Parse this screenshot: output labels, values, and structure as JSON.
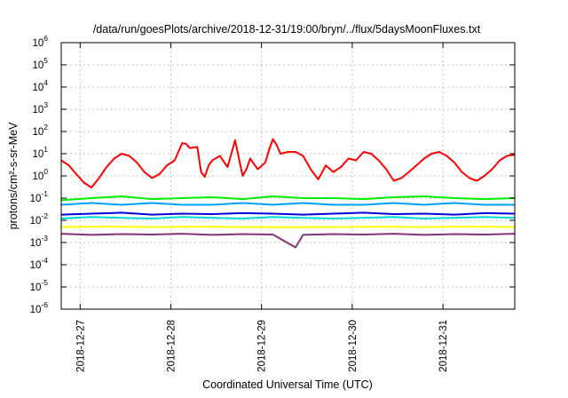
{
  "chart_data": {
    "type": "line",
    "title": "/data/run/goesPlots/archive/2018-12-31/19:00/bryn/../flux/5daysMoonFluxes.txt",
    "xlabel": "Coordinated Universal Time (UTC)",
    "ylabel": "protons/cm²-s-sr-MeV",
    "yscale": "log",
    "ylim": [
      1e-06,
      1000000.0
    ],
    "yticks": [
      {
        "value": 1e-06,
        "base": "10",
        "exp": "-6"
      },
      {
        "value": 1e-05,
        "base": "10",
        "exp": "-5"
      },
      {
        "value": 0.0001,
        "base": "10",
        "exp": "-4"
      },
      {
        "value": 0.001,
        "base": "10",
        "exp": "-3"
      },
      {
        "value": 0.01,
        "base": "10",
        "exp": "-2"
      },
      {
        "value": 0.1,
        "base": "10",
        "exp": "-1"
      },
      {
        "value": 1,
        "base": "10",
        "exp": "0"
      },
      {
        "value": 10,
        "base": "10",
        "exp": "1"
      },
      {
        "value": 100,
        "base": "10",
        "exp": "2"
      },
      {
        "value": 1000,
        "base": "10",
        "exp": "3"
      },
      {
        "value": 10000,
        "base": "10",
        "exp": "4"
      },
      {
        "value": 100000,
        "base": "10",
        "exp": "5"
      },
      {
        "value": 1000000,
        "base": "10",
        "exp": "6"
      }
    ],
    "xlim": [
      "2018-12-26T19:00",
      "2018-12-31T19:00"
    ],
    "xticks": [
      {
        "value": "2018-12-27T00:00",
        "label": "2018-12-27"
      },
      {
        "value": "2018-12-28T00:00",
        "label": "2018-12-28"
      },
      {
        "value": "2018-12-29T00:00",
        "label": "2018-12-29"
      },
      {
        "value": "2018-12-30T00:00",
        "label": "2018-12-30"
      },
      {
        "value": "2018-12-31T00:00",
        "label": "2018-12-31"
      }
    ],
    "grid": true,
    "legend": false,
    "series": [
      {
        "color": "#ff0000",
        "x": [
          "2018-12-26T19:00",
          "2018-12-26T21:00",
          "2018-12-26T23:00",
          "2018-12-27T01:00",
          "2018-12-27T03:00",
          "2018-12-27T05:00",
          "2018-12-27T07:00",
          "2018-12-27T09:00",
          "2018-12-27T11:00",
          "2018-12-27T13:00",
          "2018-12-27T15:00",
          "2018-12-27T17:00",
          "2018-12-27T19:00",
          "2018-12-27T21:00",
          "2018-12-27T23:00",
          "2018-12-28T01:00",
          "2018-12-28T02:00",
          "2018-12-28T03:00",
          "2018-12-28T04:00",
          "2018-12-28T05:00",
          "2018-12-28T07:00",
          "2018-12-28T08:00",
          "2018-12-28T09:00",
          "2018-12-28T10:00",
          "2018-12-28T11:00",
          "2018-12-28T13:00",
          "2018-12-28T15:00",
          "2018-12-28T17:00",
          "2018-12-28T19:00",
          "2018-12-28T20:00",
          "2018-12-28T21:00",
          "2018-12-28T23:00",
          "2018-12-29T01:00",
          "2018-12-29T02:00",
          "2018-12-29T03:00",
          "2018-12-29T04:00",
          "2018-12-29T05:00",
          "2018-12-29T07:00",
          "2018-12-29T09:00",
          "2018-12-29T11:00",
          "2018-12-29T13:00",
          "2018-12-29T15:00",
          "2018-12-29T17:00",
          "2018-12-29T19:00",
          "2018-12-29T21:00",
          "2018-12-29T23:00",
          "2018-12-30T01:00",
          "2018-12-30T03:00",
          "2018-12-30T05:00",
          "2018-12-30T07:00",
          "2018-12-30T09:00",
          "2018-12-30T11:00",
          "2018-12-30T13:00",
          "2018-12-30T15:00",
          "2018-12-30T17:00",
          "2018-12-30T19:00",
          "2018-12-30T21:00",
          "2018-12-30T23:00",
          "2018-12-31T01:00",
          "2018-12-31T03:00",
          "2018-12-31T05:00",
          "2018-12-31T07:00",
          "2018-12-31T09:00",
          "2018-12-31T11:00",
          "2018-12-31T13:00",
          "2018-12-31T15:00",
          "2018-12-31T17:00",
          "2018-12-31T19:00"
        ],
        "y": [
          5,
          3,
          1.2,
          0.5,
          0.3,
          0.8,
          2.5,
          6,
          10,
          8,
          4,
          1.5,
          0.8,
          1.2,
          3,
          5,
          12,
          30,
          28,
          18,
          20,
          1.5,
          0.9,
          3,
          5,
          8,
          2.5,
          40,
          1,
          2,
          6,
          2,
          4,
          15,
          45,
          25,
          10,
          12,
          12,
          8,
          2,
          0.7,
          3,
          1.5,
          2.5,
          6,
          5,
          12,
          10,
          5,
          2,
          0.6,
          0.8,
          1.5,
          3,
          6,
          10,
          12,
          8,
          4,
          1.5,
          0.8,
          0.6,
          1,
          2,
          5,
          8,
          9
        ]
      },
      {
        "color": "#00ee00",
        "x": [
          "2018-12-26T19:00",
          "2018-12-27T03:00",
          "2018-12-27T11:00",
          "2018-12-27T19:00",
          "2018-12-28T03:00",
          "2018-12-28T11:00",
          "2018-12-28T19:00",
          "2018-12-29T03:00",
          "2018-12-29T11:00",
          "2018-12-29T19:00",
          "2018-12-30T03:00",
          "2018-12-30T11:00",
          "2018-12-30T19:00",
          "2018-12-31T03:00",
          "2018-12-31T11:00",
          "2018-12-31T19:00"
        ],
        "y": [
          0.08,
          0.1,
          0.12,
          0.09,
          0.1,
          0.11,
          0.09,
          0.12,
          0.1,
          0.1,
          0.09,
          0.11,
          0.12,
          0.1,
          0.09,
          0.1
        ]
      },
      {
        "color": "#00a0ff",
        "x": [
          "2018-12-26T19:00",
          "2018-12-27T03:00",
          "2018-12-27T11:00",
          "2018-12-27T19:00",
          "2018-12-28T03:00",
          "2018-12-28T11:00",
          "2018-12-28T19:00",
          "2018-12-29T03:00",
          "2018-12-29T11:00",
          "2018-12-29T19:00",
          "2018-12-30T03:00",
          "2018-12-30T11:00",
          "2018-12-30T19:00",
          "2018-12-31T03:00",
          "2018-12-31T11:00",
          "2018-12-31T19:00"
        ],
        "y": [
          0.05,
          0.06,
          0.05,
          0.06,
          0.05,
          0.05,
          0.06,
          0.05,
          0.06,
          0.05,
          0.05,
          0.06,
          0.05,
          0.06,
          0.05,
          0.05
        ]
      },
      {
        "color": "#00d8d8",
        "x": [
          "2018-12-26T19:00",
          "2018-12-27T03:00",
          "2018-12-27T11:00",
          "2018-12-27T19:00",
          "2018-12-28T03:00",
          "2018-12-28T11:00",
          "2018-12-28T19:00",
          "2018-12-29T03:00",
          "2018-12-29T11:00",
          "2018-12-29T19:00",
          "2018-12-30T03:00",
          "2018-12-30T11:00",
          "2018-12-30T19:00",
          "2018-12-31T03:00",
          "2018-12-31T11:00",
          "2018-12-31T19:00"
        ],
        "y": [
          0.012,
          0.014,
          0.013,
          0.012,
          0.014,
          0.013,
          0.012,
          0.014,
          0.013,
          0.012,
          0.013,
          0.014,
          0.012,
          0.013,
          0.014,
          0.013
        ]
      },
      {
        "color": "#0000dd",
        "x": [
          "2018-12-26T19:00",
          "2018-12-27T03:00",
          "2018-12-27T11:00",
          "2018-12-27T19:00",
          "2018-12-28T03:00",
          "2018-12-28T11:00",
          "2018-12-28T19:00",
          "2018-12-29T03:00",
          "2018-12-29T11:00",
          "2018-12-29T19:00",
          "2018-12-30T03:00",
          "2018-12-30T11:00",
          "2018-12-30T19:00",
          "2018-12-31T03:00",
          "2018-12-31T11:00",
          "2018-12-31T19:00"
        ],
        "y": [
          0.018,
          0.02,
          0.022,
          0.018,
          0.02,
          0.019,
          0.021,
          0.02,
          0.018,
          0.02,
          0.022,
          0.019,
          0.02,
          0.018,
          0.021,
          0.02
        ]
      },
      {
        "color": "#ffff00",
        "x": [
          "2018-12-26T19:00",
          "2018-12-27T07:00",
          "2018-12-27T19:00",
          "2018-12-28T07:00",
          "2018-12-28T19:00",
          "2018-12-29T07:00",
          "2018-12-29T19:00",
          "2018-12-30T07:00",
          "2018-12-30T19:00",
          "2018-12-31T07:00",
          "2018-12-31T19:00"
        ],
        "y": [
          0.005,
          0.0052,
          0.005,
          0.0051,
          0.005,
          0.0049,
          0.005,
          0.0051,
          0.005,
          0.0052,
          0.005
        ]
      },
      {
        "color": "#883377",
        "x": [
          "2018-12-26T19:00",
          "2018-12-27T03:00",
          "2018-12-27T11:00",
          "2018-12-27T19:00",
          "2018-12-28T03:00",
          "2018-12-28T11:00",
          "2018-12-28T19:00",
          "2018-12-29T03:00",
          "2018-12-29T09:00",
          "2018-12-29T11:00",
          "2018-12-29T19:00",
          "2018-12-30T03:00",
          "2018-12-30T11:00",
          "2018-12-30T19:00",
          "2018-12-31T03:00",
          "2018-12-31T11:00",
          "2018-12-31T19:00"
        ],
        "y": [
          0.0025,
          0.0022,
          0.0024,
          0.0023,
          0.0025,
          0.0022,
          0.0024,
          0.0023,
          0.0006,
          0.0022,
          0.0024,
          0.0023,
          0.0025,
          0.0022,
          0.0024,
          0.0023,
          0.0025
        ]
      }
    ]
  }
}
